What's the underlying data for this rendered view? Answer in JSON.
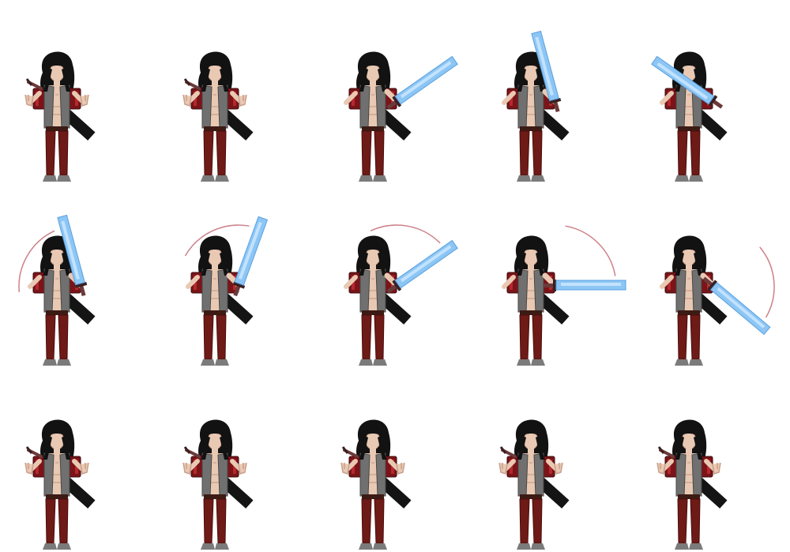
{
  "sprite_sheet": {
    "columns": 5,
    "rows": 3,
    "background": "#ffffff",
    "colors": {
      "hair": "#121212",
      "skin": "#e9c9b3",
      "skin_shade": "#c9a08b",
      "vest": "#707070",
      "vest_dark": "#474747",
      "red_pack": "#7a1418",
      "red_pack_light": "#b5282c",
      "pants": "#6e1a16",
      "pants_dark": "#4a0f0d",
      "boots": "#7b7b7b",
      "scabbard": "#141414",
      "hilt": "#6b3a3a",
      "blade": "#8cc6f5",
      "blade_light": "#cfe9ff",
      "blade_edge": "#5aa0e0",
      "trail": "#c0606a"
    },
    "frames": [
      {
        "id": 1,
        "pose": "idle",
        "sword": "sheathed",
        "trail": false
      },
      {
        "id": 2,
        "pose": "reach",
        "sword": "sheathed",
        "trail": false
      },
      {
        "id": 3,
        "pose": "draw",
        "sword": "drawn",
        "sword_angle": -35,
        "trail": false
      },
      {
        "id": 4,
        "pose": "raise",
        "sword": "drawn",
        "sword_angle": -105,
        "trail": false
      },
      {
        "id": 5,
        "pose": "overhead",
        "sword": "drawn",
        "sword_angle": -145,
        "trail": false
      },
      {
        "id": 6,
        "pose": "windup",
        "sword": "drawn",
        "sword_angle": -105,
        "trail": true
      },
      {
        "id": 7,
        "pose": "swing",
        "sword": "drawn",
        "sword_angle": -70,
        "trail": true
      },
      {
        "id": 8,
        "pose": "swing",
        "sword": "drawn",
        "sword_angle": -35,
        "trail": true
      },
      {
        "id": 9,
        "pose": "strike",
        "sword": "drawn",
        "sword_angle": 0,
        "trail": true
      },
      {
        "id": 10,
        "pose": "follow-through",
        "sword": "drawn",
        "sword_angle": 40,
        "trail": true
      },
      {
        "id": 11,
        "pose": "idle",
        "sword": "sheathed",
        "trail": false
      },
      {
        "id": 12,
        "pose": "idle",
        "sword": "sheathed",
        "trail": false
      },
      {
        "id": 13,
        "pose": "idle",
        "sword": "sheathed",
        "trail": false
      },
      {
        "id": 14,
        "pose": "idle",
        "sword": "sheathed",
        "trail": false
      },
      {
        "id": 15,
        "pose": "idle",
        "sword": "sheathed",
        "trail": false
      }
    ]
  }
}
